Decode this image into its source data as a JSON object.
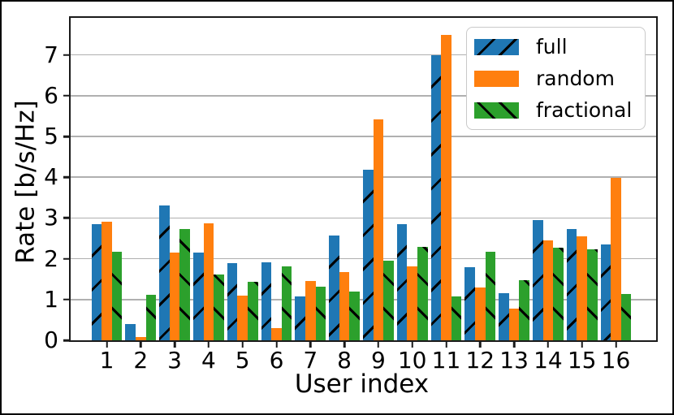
{
  "chart_data": {
    "type": "bar",
    "title": "",
    "xlabel": "User index",
    "ylabel": "Rate [b/s/Hz]",
    "categories": [
      "1",
      "2",
      "3",
      "4",
      "5",
      "6",
      "7",
      "8",
      "9",
      "10",
      "11",
      "12",
      "13",
      "14",
      "15",
      "16"
    ],
    "series": [
      {
        "name": "full",
        "color": "#1f77b4",
        "hatch": "/",
        "values": [
          2.85,
          0.4,
          3.3,
          2.15,
          1.9,
          1.91,
          1.07,
          2.57,
          4.18,
          2.85,
          6.99,
          1.79,
          1.15,
          2.94,
          2.73,
          2.36
        ]
      },
      {
        "name": "random",
        "color": "#ff7f0e",
        "hatch": "",
        "values": [
          2.9,
          0.08,
          2.15,
          2.87,
          1.09,
          0.3,
          1.46,
          1.67,
          5.41,
          1.82,
          7.49,
          1.3,
          0.78,
          2.45,
          2.56,
          3.98
        ]
      },
      {
        "name": "fractional",
        "color": "#2ca02c",
        "hatch": "\\",
        "values": [
          2.18,
          1.12,
          2.72,
          1.61,
          1.44,
          1.81,
          1.32,
          1.19,
          1.96,
          2.3,
          1.08,
          2.18,
          1.47,
          2.28,
          2.24,
          1.13
        ]
      }
    ],
    "ylim": [
      0,
      7.91
    ],
    "yticks": [
      "0",
      "1",
      "2",
      "3",
      "4",
      "5",
      "6",
      "7"
    ],
    "grid": true,
    "grid_color": "#b0b0b0",
    "hatch_color": "#000000",
    "legend_position": "upper right"
  }
}
